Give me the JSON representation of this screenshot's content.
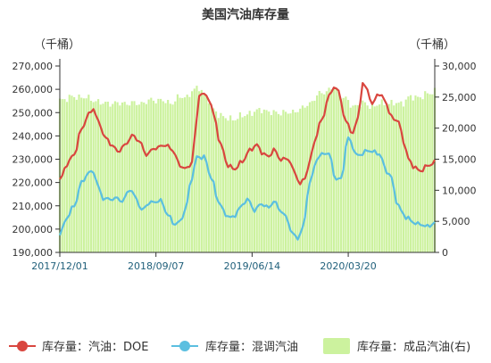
{
  "chart_data": {
    "type": "line",
    "title": "美国汽油库存量",
    "left_unit": "（千桶）",
    "right_unit": "（千桶）",
    "y_left": {
      "range": [
        190000,
        270000
      ],
      "ticks": [
        "190,000",
        "200,000",
        "210,000",
        "220,000",
        "230,000",
        "240,000",
        "250,000",
        "260,000",
        "270,000"
      ]
    },
    "y_right": {
      "range": [
        0,
        30000
      ],
      "ticks": [
        "0",
        "5,000",
        "10,000",
        "15,000",
        "20,000",
        "25,000",
        "30,000"
      ]
    },
    "x_tick_labels": [
      "2017/12/01",
      "2018/09/07",
      "2019/06/14",
      "2020/03/20"
    ],
    "x_tick_positions": [
      0,
      40,
      80,
      120
    ],
    "series": [
      {
        "name": "库存量：汽油：DOE",
        "axis": "left",
        "color": "#d9463f",
        "anchors": [
          [
            0,
            221000
          ],
          [
            3,
            228000
          ],
          [
            6,
            232000
          ],
          [
            9,
            243000
          ],
          [
            12,
            249000
          ],
          [
            14,
            252000
          ],
          [
            16,
            246000
          ],
          [
            19,
            239000
          ],
          [
            22,
            236000
          ],
          [
            24,
            233000
          ],
          [
            27,
            236000
          ],
          [
            30,
            240000
          ],
          [
            33,
            238000
          ],
          [
            36,
            232000
          ],
          [
            40,
            235000
          ],
          [
            44,
            236000
          ],
          [
            47,
            234000
          ],
          [
            50,
            227000
          ],
          [
            53,
            226000
          ],
          [
            55,
            229000
          ],
          [
            57,
            247000
          ],
          [
            58,
            258000
          ],
          [
            60,
            258000
          ],
          [
            62,
            256000
          ],
          [
            64,
            249000
          ],
          [
            67,
            236000
          ],
          [
            70,
            227000
          ],
          [
            73,
            226000
          ],
          [
            76,
            229000
          ],
          [
            79,
            234000
          ],
          [
            82,
            236000
          ],
          [
            84,
            233000
          ],
          [
            87,
            231000
          ],
          [
            89,
            234000
          ],
          [
            92,
            230000
          ],
          [
            95,
            230000
          ],
          [
            98,
            224000
          ],
          [
            100,
            219000
          ],
          [
            102,
            222000
          ],
          [
            104,
            229000
          ],
          [
            106,
            238000
          ],
          [
            109,
            247000
          ],
          [
            112,
            257000
          ],
          [
            114,
            261000
          ],
          [
            116,
            259000
          ],
          [
            119,
            246000
          ],
          [
            122,
            241000
          ],
          [
            124,
            248000
          ],
          [
            126,
            262000
          ],
          [
            128,
            260000
          ],
          [
            130,
            253000
          ],
          [
            132,
            258000
          ],
          [
            135,
            256000
          ],
          [
            138,
            248000
          ],
          [
            141,
            246000
          ],
          [
            143,
            238000
          ],
          [
            145,
            230000
          ],
          [
            147,
            227000
          ],
          [
            150,
            225000
          ],
          [
            153,
            227000
          ],
          [
            156,
            229000
          ]
        ]
      },
      {
        "name": "库存量：混调汽油",
        "axis": "left",
        "color": "#5bbfe0",
        "anchors": [
          [
            0,
            198000
          ],
          [
            3,
            205000
          ],
          [
            6,
            210000
          ],
          [
            9,
            220000
          ],
          [
            12,
            224000
          ],
          [
            14,
            225000
          ],
          [
            16,
            218000
          ],
          [
            18,
            213000
          ],
          [
            21,
            213000
          ],
          [
            24,
            213000
          ],
          [
            26,
            212000
          ],
          [
            29,
            217000
          ],
          [
            32,
            213000
          ],
          [
            34,
            208000
          ],
          [
            37,
            211000
          ],
          [
            40,
            212000
          ],
          [
            42,
            212000
          ],
          [
            45,
            206000
          ],
          [
            48,
            202000
          ],
          [
            50,
            203000
          ],
          [
            52,
            208000
          ],
          [
            55,
            222000
          ],
          [
            57,
            231000
          ],
          [
            60,
            231000
          ],
          [
            63,
            222000
          ],
          [
            66,
            212000
          ],
          [
            69,
            206000
          ],
          [
            72,
            205000
          ],
          [
            75,
            209000
          ],
          [
            78,
            213000
          ],
          [
            81,
            208000
          ],
          [
            84,
            211000
          ],
          [
            87,
            209000
          ],
          [
            89,
            212000
          ],
          [
            92,
            208000
          ],
          [
            94,
            205000
          ],
          [
            97,
            198000
          ],
          [
            99,
            196000
          ],
          [
            101,
            200000
          ],
          [
            104,
            220000
          ],
          [
            107,
            230000
          ],
          [
            110,
            233000
          ],
          [
            112,
            232000
          ],
          [
            115,
            221000
          ],
          [
            117,
            222000
          ],
          [
            120,
            239000
          ],
          [
            121,
            238000
          ],
          [
            123,
            232000
          ],
          [
            126,
            232000
          ],
          [
            128,
            234000
          ],
          [
            131,
            233000
          ],
          [
            133,
            232000
          ],
          [
            136,
            225000
          ],
          [
            138,
            222000
          ],
          [
            140,
            212000
          ],
          [
            142,
            208000
          ],
          [
            144,
            205000
          ],
          [
            147,
            203000
          ],
          [
            150,
            202000
          ],
          [
            153,
            201000
          ],
          [
            156,
            203000
          ]
        ]
      },
      {
        "name": "库存量：成品汽油(右)",
        "axis": "right",
        "color": "#ccf29e",
        "anchors": [
          [
            0,
            24500
          ],
          [
            5,
            25000
          ],
          [
            10,
            25000
          ],
          [
            14,
            24500
          ],
          [
            18,
            24000
          ],
          [
            22,
            24000
          ],
          [
            26,
            24000
          ],
          [
            30,
            24000
          ],
          [
            34,
            24000
          ],
          [
            38,
            24500
          ],
          [
            42,
            24500
          ],
          [
            46,
            24000
          ],
          [
            50,
            25000
          ],
          [
            53,
            25000
          ],
          [
            55,
            26000
          ],
          [
            58,
            26500
          ],
          [
            61,
            25000
          ],
          [
            64,
            23000
          ],
          [
            67,
            22000
          ],
          [
            70,
            21500
          ],
          [
            73,
            21500
          ],
          [
            76,
            22000
          ],
          [
            80,
            22500
          ],
          [
            84,
            23000
          ],
          [
            88,
            22500
          ],
          [
            92,
            22500
          ],
          [
            96,
            22500
          ],
          [
            100,
            23000
          ],
          [
            104,
            24000
          ],
          [
            108,
            25500
          ],
          [
            111,
            26000
          ],
          [
            114,
            26500
          ],
          [
            118,
            25000
          ],
          [
            122,
            23500
          ],
          [
            126,
            24000
          ],
          [
            130,
            23500
          ],
          [
            134,
            24000
          ],
          [
            138,
            24000
          ],
          [
            142,
            24000
          ],
          [
            146,
            25000
          ],
          [
            150,
            25000
          ],
          [
            153,
            25500
          ],
          [
            156,
            26000
          ]
        ]
      }
    ],
    "legend_position": "bottom",
    "grid": false
  }
}
